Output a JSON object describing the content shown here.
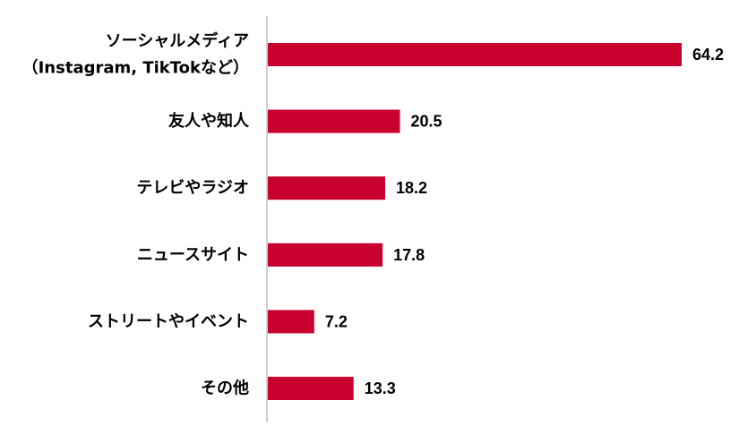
{
  "chart_data": {
    "type": "bar",
    "orientation": "horizontal",
    "categories": [
      [
        "ソーシャルメディア",
        "（Instagram, TikTokなど）"
      ],
      [
        "友人や知人"
      ],
      [
        "テレビやラジオ"
      ],
      [
        "ニュースサイト"
      ],
      [
        "ストリートやイベント"
      ],
      [
        "その他"
      ]
    ],
    "values": [
      64.2,
      20.5,
      18.2,
      17.8,
      7.2,
      13.3
    ],
    "value_labels": [
      "64.2",
      "20.5",
      "18.2",
      "17.8",
      "7.2",
      "13.3"
    ],
    "xlim": [
      0,
      64.2
    ],
    "grid": false,
    "legend": "none",
    "bar_color": "#c8002e",
    "axis_color": "#bfbfbf"
  }
}
